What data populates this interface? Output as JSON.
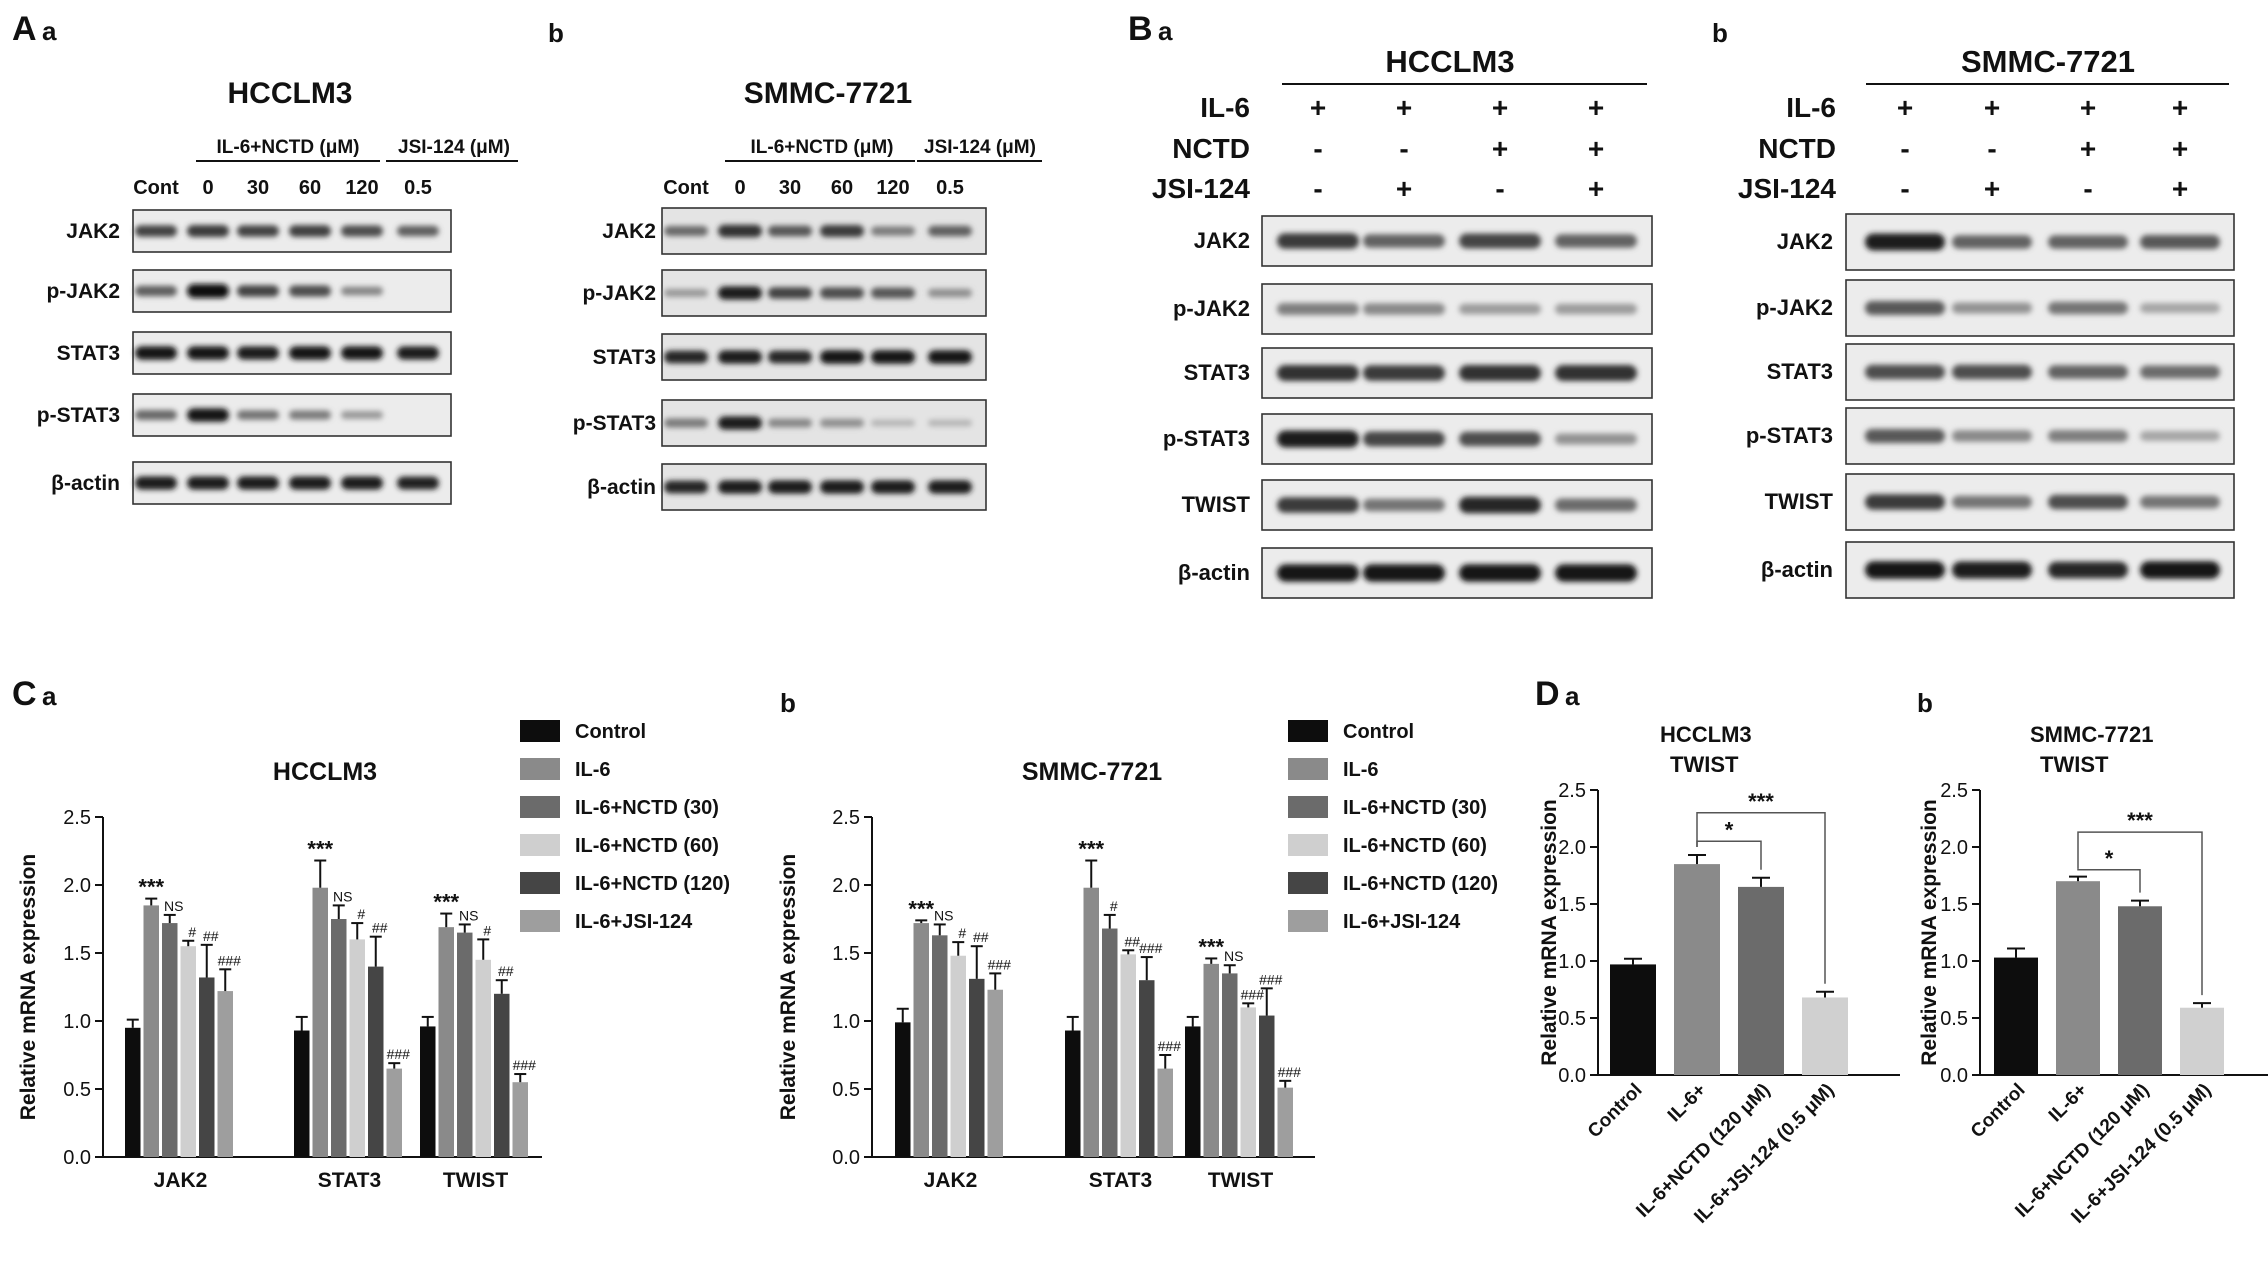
{
  "figure": {
    "panel_letters": [
      "A",
      "B",
      "C",
      "D"
    ],
    "sub_letters": {
      "a": "a",
      "b": "b"
    },
    "A": {
      "a": {
        "title": "HCCLM3",
        "group1": "IL-6+NCTD (μM)",
        "group2": "JSI-124 (μM)",
        "lanes": [
          "Cont",
          "0",
          "30",
          "60",
          "120",
          "0.5"
        ],
        "rows": [
          {
            "label": "JAK2",
            "bands": [
              0.7,
              0.75,
              0.7,
              0.72,
              0.65,
              0.55
            ]
          },
          {
            "label": "p-JAK2",
            "bands": [
              0.55,
              1.0,
              0.7,
              0.65,
              0.35,
              0.0
            ]
          },
          {
            "label": "STAT3",
            "bands": [
              0.95,
              0.95,
              0.9,
              0.95,
              0.95,
              0.9
            ]
          },
          {
            "label": "p-STAT3",
            "bands": [
              0.5,
              0.95,
              0.45,
              0.4,
              0.25,
              0.0
            ]
          },
          {
            "label": "β-actin",
            "bands": [
              0.9,
              0.9,
              0.9,
              0.9,
              0.9,
              0.88
            ]
          }
        ]
      },
      "b": {
        "title": "SMMC-7721",
        "group1": "IL-6+NCTD (μM)",
        "group2": "JSI-124 (μM)",
        "lanes": [
          "Cont",
          "0",
          "30",
          "60",
          "120",
          "0.5"
        ],
        "rows": [
          {
            "label": "JAK2",
            "bands": [
              0.5,
              0.8,
              0.6,
              0.75,
              0.4,
              0.55
            ]
          },
          {
            "label": "p-JAK2",
            "bands": [
              0.25,
              0.9,
              0.7,
              0.65,
              0.6,
              0.3
            ]
          },
          {
            "label": "STAT3",
            "bands": [
              0.85,
              0.9,
              0.85,
              0.95,
              0.95,
              0.95
            ]
          },
          {
            "label": "p-STAT3",
            "bands": [
              0.4,
              0.9,
              0.35,
              0.3,
              0.1,
              0.1
            ]
          },
          {
            "label": "β-actin",
            "bands": [
              0.85,
              0.9,
              0.9,
              0.9,
              0.9,
              0.9
            ]
          }
        ]
      }
    },
    "B": {
      "a": {
        "title": "HCCLM3",
        "conditions": [
          {
            "label": "IL-6",
            "values": [
              "+",
              "+",
              "+",
              "+"
            ]
          },
          {
            "label": "NCTD",
            "values": [
              "-",
              "-",
              "+",
              "+"
            ]
          },
          {
            "label": "JSI-124",
            "values": [
              "-",
              "+",
              "-",
              "+"
            ]
          }
        ],
        "rows": [
          {
            "label": "JAK2",
            "bands": [
              0.75,
              0.55,
              0.7,
              0.55
            ]
          },
          {
            "label": "p-JAK2",
            "bands": [
              0.4,
              0.35,
              0.25,
              0.25
            ]
          },
          {
            "label": "STAT3",
            "bands": [
              0.8,
              0.75,
              0.8,
              0.8
            ]
          },
          {
            "label": "p-STAT3",
            "bands": [
              0.9,
              0.7,
              0.65,
              0.3
            ]
          },
          {
            "label": "TWIST",
            "bands": [
              0.75,
              0.45,
              0.85,
              0.5
            ]
          },
          {
            "label": "β-actin",
            "bands": [
              0.95,
              0.95,
              0.95,
              0.95
            ]
          }
        ]
      },
      "b": {
        "title": "SMMC-7721",
        "conditions": [
          {
            "label": "IL-6",
            "values": [
              "+",
              "+",
              "+",
              "+"
            ]
          },
          {
            "label": "NCTD",
            "values": [
              "-",
              "-",
              "+",
              "+"
            ]
          },
          {
            "label": "JSI-124",
            "values": [
              "-",
              "+",
              "-",
              "+"
            ]
          }
        ],
        "rows": [
          {
            "label": "JAK2",
            "bands": [
              0.9,
              0.55,
              0.55,
              0.6
            ]
          },
          {
            "label": "p-JAK2",
            "bands": [
              0.6,
              0.3,
              0.45,
              0.2
            ]
          },
          {
            "label": "STAT3",
            "bands": [
              0.65,
              0.65,
              0.55,
              0.5
            ]
          },
          {
            "label": "p-STAT3",
            "bands": [
              0.6,
              0.35,
              0.4,
              0.2
            ]
          },
          {
            "label": "TWIST",
            "bands": [
              0.75,
              0.45,
              0.65,
              0.45
            ]
          },
          {
            "label": "β-actin",
            "bands": [
              0.95,
              0.9,
              0.85,
              0.95
            ]
          }
        ]
      }
    }
  },
  "chart_data": [
    {
      "id": "Ca",
      "type": "bar",
      "title": "HCCLM3",
      "ylabel": "Relative mRNA expression",
      "xlabel": "",
      "ylim": [
        0,
        2.5
      ],
      "yticks": [
        "0.0",
        "0.5",
        "1.0",
        "1.5",
        "2.0",
        "2.5"
      ],
      "categories": [
        "JAK2",
        "STAT3",
        "TWIST"
      ],
      "legend_position": "right",
      "series": [
        {
          "name": "Control",
          "color": "#0d0d0d",
          "values": [
            0.95,
            0.93,
            0.96
          ],
          "errors": [
            0.06,
            0.1,
            0.07
          ],
          "labels": [
            "",
            "",
            ""
          ]
        },
        {
          "name": "IL-6",
          "color": "#8a8a8a",
          "values": [
            1.85,
            1.98,
            1.69
          ],
          "errors": [
            0.05,
            0.2,
            0.1
          ],
          "labels": [
            "***",
            "***",
            "***"
          ]
        },
        {
          "name": "IL-6+NCTD (30)",
          "color": "#6b6b6b",
          "values": [
            1.72,
            1.75,
            1.65
          ],
          "errors": [
            0.06,
            0.1,
            0.06
          ],
          "labels": [
            "NS",
            "NS",
            "NS"
          ]
        },
        {
          "name": "IL-6+NCTD (60)",
          "color": "#cfcfcf",
          "values": [
            1.55,
            1.6,
            1.45
          ],
          "errors": [
            0.04,
            0.12,
            0.15
          ],
          "labels": [
            "#",
            "#",
            "#"
          ]
        },
        {
          "name": "IL-6+NCTD (120)",
          "color": "#454545",
          "values": [
            1.32,
            1.4,
            1.2
          ],
          "errors": [
            0.24,
            0.22,
            0.1
          ],
          "labels": [
            "##",
            "##",
            "##"
          ]
        },
        {
          "name": "IL-6+JSI-124",
          "color": "#9e9e9e",
          "values": [
            1.22,
            0.65,
            0.55
          ],
          "errors": [
            0.16,
            0.04,
            0.06
          ],
          "labels": [
            "###",
            "###",
            "###"
          ]
        }
      ]
    },
    {
      "id": "Cb",
      "type": "bar",
      "title": "SMMC-7721",
      "ylabel": "Relative mRNA expression",
      "xlabel": "",
      "ylim": [
        0,
        2.5
      ],
      "yticks": [
        "0.0",
        "0.5",
        "1.0",
        "1.5",
        "2.0",
        "2.5"
      ],
      "categories": [
        "JAK2",
        "STAT3",
        "TWIST"
      ],
      "legend_position": "right",
      "series": [
        {
          "name": "Control",
          "color": "#0d0d0d",
          "values": [
            0.99,
            0.93,
            0.96
          ],
          "errors": [
            0.1,
            0.1,
            0.07
          ],
          "labels": [
            "",
            "",
            ""
          ]
        },
        {
          "name": "IL-6",
          "color": "#8a8a8a",
          "values": [
            1.72,
            1.98,
            1.42
          ],
          "errors": [
            0.02,
            0.2,
            0.04
          ],
          "labels": [
            "***",
            "***",
            "***"
          ]
        },
        {
          "name": "IL-6+NCTD (30)",
          "color": "#6b6b6b",
          "values": [
            1.63,
            1.68,
            1.35
          ],
          "errors": [
            0.08,
            0.1,
            0.06
          ],
          "labels": [
            "NS",
            "#",
            "NS"
          ]
        },
        {
          "name": "IL-6+NCTD (60)",
          "color": "#cfcfcf",
          "values": [
            1.48,
            1.49,
            1.1
          ],
          "errors": [
            0.1,
            0.03,
            0.03
          ],
          "labels": [
            "#",
            "##",
            "###"
          ]
        },
        {
          "name": "IL-6+NCTD (120)",
          "color": "#454545",
          "values": [
            1.31,
            1.3,
            1.04
          ],
          "errors": [
            0.24,
            0.17,
            0.2
          ],
          "labels": [
            "##",
            "###",
            "###"
          ]
        },
        {
          "name": "IL-6+JSI-124",
          "color": "#9e9e9e",
          "values": [
            1.23,
            0.65,
            0.51
          ],
          "errors": [
            0.12,
            0.1,
            0.05
          ],
          "labels": [
            "###",
            "###",
            "###"
          ]
        }
      ]
    },
    {
      "id": "Da",
      "type": "bar",
      "title": "HCCLM3",
      "subtitle": "TWIST",
      "ylabel": "Relative mRNA expression",
      "xlabel": "",
      "ylim": [
        0,
        2.5
      ],
      "yticks": [
        "0.0",
        "0.5",
        "1.0",
        "1.5",
        "2.0",
        "2.5"
      ],
      "categories": [
        "Control",
        "IL-6+",
        "IL-6+NCTD (120 μM)",
        "IL-6+JSI-124 (0.5 μM)"
      ],
      "values": [
        0.97,
        1.85,
        1.65,
        0.68
      ],
      "errors": [
        0.05,
        0.08,
        0.08,
        0.05
      ],
      "colors": [
        "#0d0d0d",
        "#8a8a8a",
        "#6b6b6b",
        "#d0d0d0"
      ],
      "brackets": [
        {
          "from": 1,
          "to": 2,
          "label": "*"
        },
        {
          "from": 1,
          "to": 3,
          "label": "***"
        }
      ]
    },
    {
      "id": "Db",
      "type": "bar",
      "title": "SMMC-7721",
      "subtitle": "TWIST",
      "ylabel": "Relative mRNA expression",
      "xlabel": "",
      "ylim": [
        0,
        2.5
      ],
      "yticks": [
        "0.0",
        "0.5",
        "1.0",
        "1.5",
        "2.0",
        "2.5"
      ],
      "categories": [
        "Control",
        "IL-6+",
        "IL-6+NCTD (120 μM)",
        "IL-6+JSI-124 (0.5 μM)"
      ],
      "values": [
        1.03,
        1.7,
        1.48,
        0.59
      ],
      "errors": [
        0.08,
        0.04,
        0.05,
        0.04
      ],
      "colors": [
        "#0d0d0d",
        "#8a8a8a",
        "#6b6b6b",
        "#d0d0d0"
      ],
      "brackets": [
        {
          "from": 1,
          "to": 2,
          "label": "*"
        },
        {
          "from": 1,
          "to": 3,
          "label": "***"
        }
      ]
    }
  ]
}
